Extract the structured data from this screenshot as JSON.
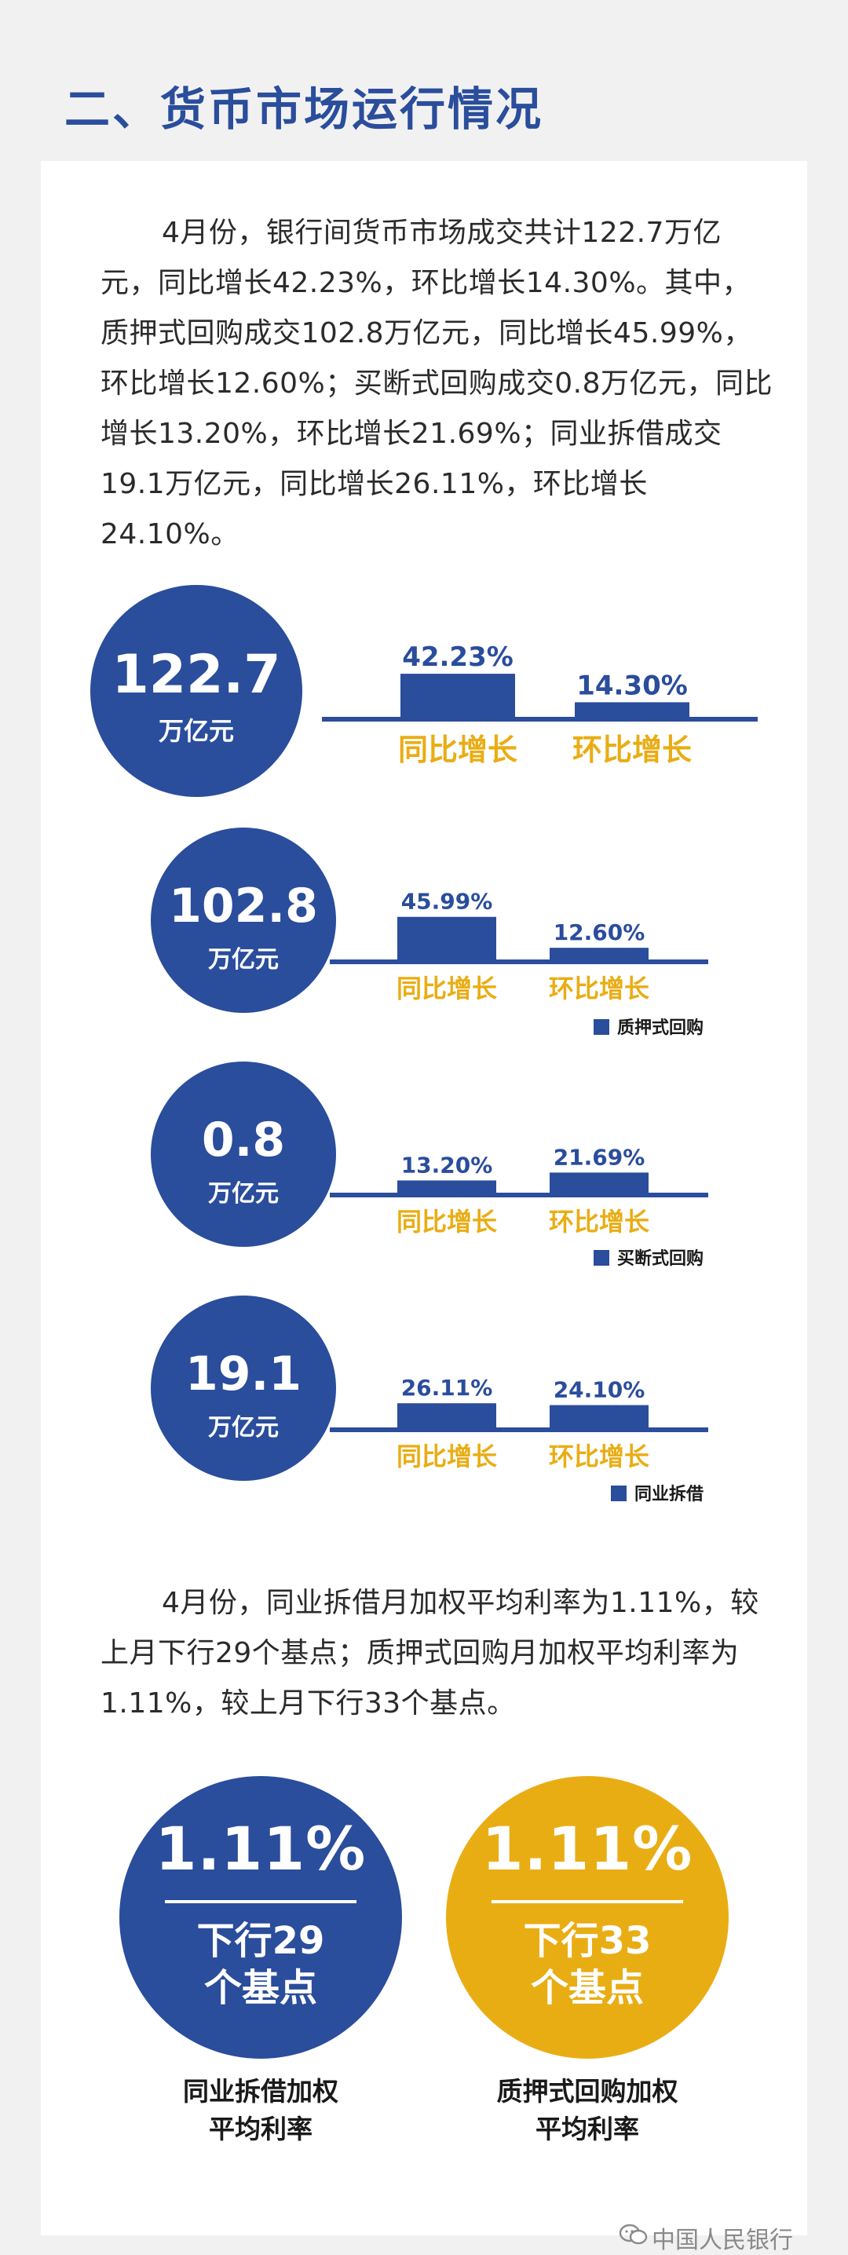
{
  "section_title": "二、货币市场运行情况",
  "intro_text": "4月份，银行间货币市场成交共计122.7万亿元，同比增长42.23%，环比增长14.30%。其中，质押式回购成交102.8万亿元，同比增长45.99%，环比增长12.60%；买断式回购成交0.8万亿元，同比增长13.20%，环比增长21.69%；同业拆借成交19.1万亿元，同比增长26.11%，环比增长24.10%。",
  "rate_text": "4月份，同业拆借月加权平均利率为1.11%，较上月下行29个基点；质押式回购月加权平均利率为1.11%，较上月下行33个基点。",
  "colors": {
    "blue": "#2a4d9c",
    "gold": "#e9ad14",
    "bg": "#f1f1f1",
    "card": "#ffffff"
  },
  "chart_data": [
    {
      "type": "bar",
      "total_value": "122.7",
      "total_unit": "万亿元",
      "categories": [
        "同比增长",
        "环比增长"
      ],
      "values": [
        42.23,
        14.3
      ],
      "value_labels": [
        "42.23%",
        "14.30%"
      ],
      "legend": ""
    },
    {
      "type": "bar",
      "total_value": "102.8",
      "total_unit": "万亿元",
      "categories": [
        "同比增长",
        "环比增长"
      ],
      "values": [
        45.99,
        12.6
      ],
      "value_labels": [
        "45.99%",
        "12.60%"
      ],
      "legend": "质押式回购"
    },
    {
      "type": "bar",
      "total_value": "0.8",
      "total_unit": "万亿元",
      "categories": [
        "同比增长",
        "环比增长"
      ],
      "values": [
        13.2,
        21.69
      ],
      "value_labels": [
        "13.20%",
        "21.69%"
      ],
      "legend": "买断式回购"
    },
    {
      "type": "bar",
      "total_value": "19.1",
      "total_unit": "万亿元",
      "categories": [
        "同比增长",
        "环比增长"
      ],
      "values": [
        26.11,
        24.1
      ],
      "value_labels": [
        "26.11%",
        "24.10%"
      ],
      "legend": "同业拆借"
    }
  ],
  "rates": [
    {
      "rate": "1.11%",
      "change_line1": "下行29",
      "change_line2": "个基点",
      "label_line1": "同业拆借加权",
      "label_line2": "平均利率",
      "color": "blue"
    },
    {
      "rate": "1.11%",
      "change_line1": "下行33",
      "change_line2": "个基点",
      "label_line1": "质押式回购加权",
      "label_line2": "平均利率",
      "color": "gold"
    }
  ],
  "watermark": "中国人民银行",
  "watermark_icon": "wechat-icon"
}
